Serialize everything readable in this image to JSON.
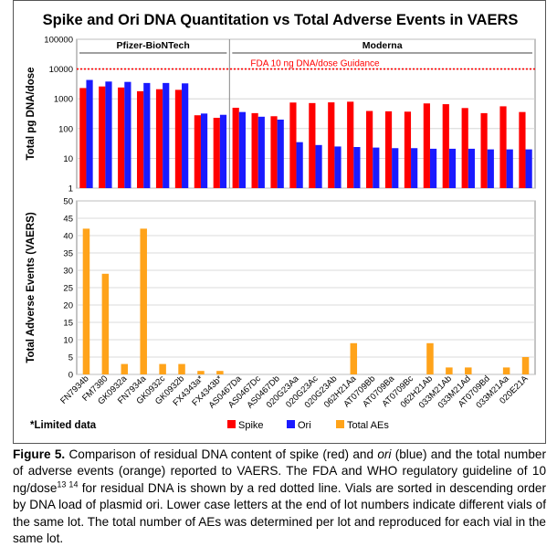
{
  "chart_data": [
    {
      "type": "bar",
      "title": "Spike and Ori DNA Quantitation vs Total Adverse Events in VAERS",
      "ylabel": "Total pg DNA/dose",
      "yscale": "log",
      "ylim": [
        1,
        100000
      ],
      "yticks": [
        "1",
        "10",
        "100",
        "1000",
        "10000",
        "100000"
      ],
      "grid": true,
      "groups": [
        {
          "name": "Pfizer-BioNTech",
          "categories": [
            "FN7934b",
            "FM7380",
            "GK0932a",
            "FN7934a",
            "GK0932c",
            "GK0932b",
            "FX4343a*",
            "FX4343b*"
          ]
        },
        {
          "name": "Moderna",
          "categories": [
            "AS0467Da",
            "AS0467Dc",
            "AS0467Db",
            "020G23Aa",
            "020G23Ac",
            "020G23Ab",
            "062H21Aa",
            "AT0709Bb",
            "AT0709Ba",
            "AT0709Bc",
            "062H21Ab",
            "033M21Ab",
            "033M21Ad",
            "AT0709Bd",
            "033M21Aa",
            "020E21A"
          ]
        }
      ],
      "reference_line": {
        "value": 10000,
        "label": "FDA 10 ng DNA/dose Guidance",
        "color": "#ff0000",
        "style": "dotted"
      },
      "series": [
        {
          "name": "Spike",
          "color": "#ff0000",
          "values": [
            2300,
            2600,
            2400,
            1800,
            2100,
            2000,
            280,
            230,
            500,
            330,
            260,
            750,
            720,
            760,
            800,
            390,
            380,
            370,
            700,
            660,
            490,
            330,
            560,
            360
          ]
        },
        {
          "name": "Ori",
          "color": "#1a1aff",
          "values": [
            4300,
            3800,
            3700,
            3400,
            3400,
            3300,
            320,
            290,
            360,
            250,
            200,
            35,
            28,
            25,
            24,
            23,
            22,
            22,
            21,
            21,
            21,
            20,
            20,
            20
          ]
        }
      ]
    },
    {
      "type": "bar",
      "ylabel": "Total Adverse Events (VAERS)",
      "ylim": [
        0,
        50
      ],
      "yticks": [
        "0",
        "5",
        "10",
        "15",
        "20",
        "25",
        "30",
        "35",
        "40",
        "45",
        "50"
      ],
      "grid": true,
      "categories": [
        "FN7934b",
        "FM7380",
        "GK0932a",
        "FN7934a",
        "GK0932c",
        "GK0932b",
        "FX4343a*",
        "FX4343b*",
        "AS0467Da",
        "AS0467Dc",
        "AS0467Db",
        "020G23Aa",
        "020G23Ac",
        "020G23Ab",
        "062H21Aa",
        "AT0709Bb",
        "AT0709Ba",
        "AT0709Bc",
        "062H21Ab",
        "033M21Ab",
        "033M21Ad",
        "AT0709Bd",
        "033M21Aa",
        "020E21A"
      ],
      "series": [
        {
          "name": "Total AEs",
          "color": "#ffa31a",
          "values": [
            42,
            29,
            3,
            42,
            3,
            3,
            1,
            1,
            0,
            0,
            0,
            0,
            0,
            0,
            9,
            0,
            0,
            0,
            9,
            2,
            2,
            0,
            2,
            5
          ]
        }
      ]
    }
  ],
  "legend": {
    "note": "*Limited data",
    "items": [
      {
        "label": "Spike",
        "color": "#ff0000"
      },
      {
        "label": "Ori",
        "color": "#1a1aff"
      },
      {
        "label": "Total AEs",
        "color": "#ffa31a"
      }
    ]
  },
  "caption": {
    "fig_label": "Figure 5.",
    "p1": " Comparison of residual DNA content of spike (red) and ",
    "ori1": "ori",
    "p2": " (blue) and the total number of adverse events (orange) reported to VAERS. The FDA and WHO regulatory guideline of 10 ng/dose",
    "sup": "13 14",
    "p3": " for residual DNA is shown by a red dotted line. Vials are sorted in descending order by DNA load of plasmid ori. Lower case letters at the end of lot numbers indicate different vials of the same lot. The total number of AEs was determined per lot and reproduced for each vial in the same lot."
  }
}
